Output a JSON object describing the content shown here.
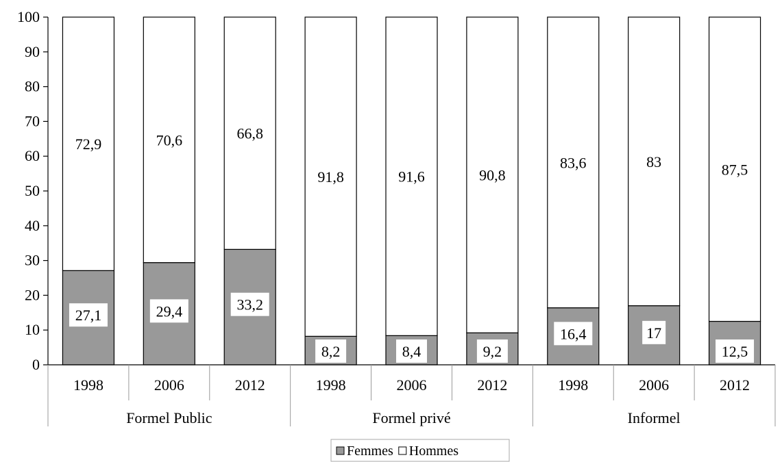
{
  "chart_data": {
    "type": "bar",
    "stacked": true,
    "y_range": [
      0,
      100
    ],
    "y_ticks": [
      0,
      10,
      20,
      30,
      40,
      50,
      60,
      70,
      80,
      90,
      100
    ],
    "groups": [
      {
        "label": "Formel Public",
        "categories": [
          "1998",
          "2006",
          "2012"
        ]
      },
      {
        "label": "Formel privé",
        "categories": [
          "1998",
          "2006",
          "2012"
        ]
      },
      {
        "label": "Informel",
        "categories": [
          "1998",
          "2006",
          "2012"
        ]
      }
    ],
    "categories": [
      "1998",
      "2006",
      "2012",
      "1998",
      "2006",
      "2012",
      "1998",
      "2006",
      "2012"
    ],
    "series": [
      {
        "name": "Femmes",
        "color": "#999999",
        "values": [
          27.1,
          29.4,
          33.2,
          8.2,
          8.4,
          9.2,
          16.4,
          17,
          12.5
        ],
        "labels": [
          "27,1",
          "29,4",
          "33,2",
          "8,2",
          "8,4",
          "9,2",
          "16,4",
          "17",
          "12,5"
        ]
      },
      {
        "name": "Hommes",
        "color": "#ffffff",
        "values": [
          72.9,
          70.6,
          66.8,
          91.8,
          91.6,
          90.8,
          83.6,
          83,
          87.5
        ],
        "labels": [
          "72,9",
          "70,6",
          "66,8",
          "91,8",
          "91,6",
          "90,8",
          "83,6",
          "83",
          "87,5"
        ]
      }
    ],
    "legend": {
      "placement": "bottom-center",
      "entries": [
        "Femmes",
        "Hommes"
      ]
    },
    "grid": false
  }
}
